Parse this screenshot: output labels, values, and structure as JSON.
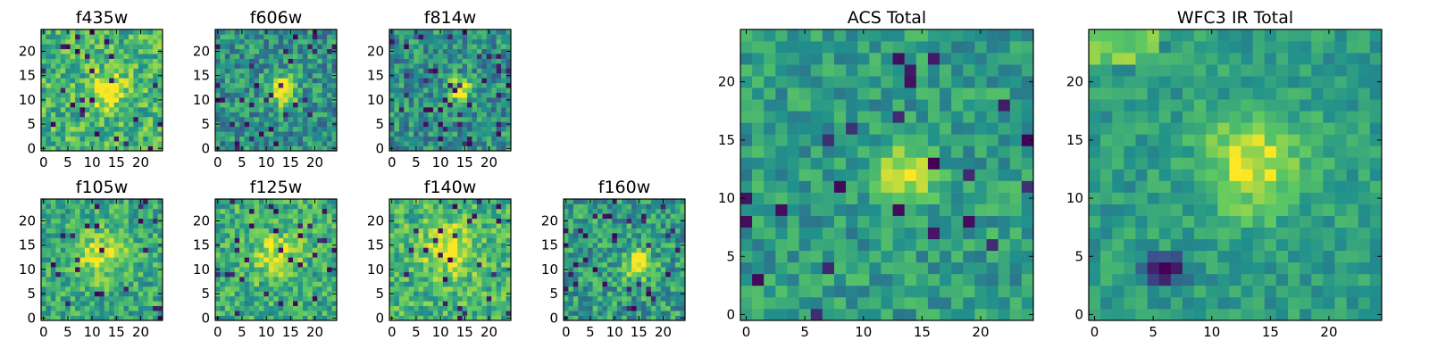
{
  "chart_data": [
    {
      "type": "heatmap",
      "title": "f435w",
      "grid_size": 25,
      "source_center": [
        13,
        12
      ],
      "source_strength": 0.45,
      "source_sigma": 2.5,
      "background": 0.66,
      "noise": 0.22,
      "seed": 11,
      "dark_pixel_rate": 0.03,
      "bright_edge": 0,
      "xticks": [
        0,
        5,
        10,
        15,
        20
      ],
      "yticks": [
        0,
        5,
        10,
        15,
        20
      ],
      "xtick_labels": [
        "0",
        "5",
        "10",
        "15",
        "20"
      ],
      "ytick_labels": [
        "0",
        "5",
        "10",
        "15",
        "20"
      ]
    },
    {
      "type": "heatmap",
      "title": "f606w",
      "grid_size": 25,
      "source_center": [
        13,
        12
      ],
      "source_strength": 0.55,
      "source_sigma": 2.2,
      "background": 0.5,
      "noise": 0.22,
      "seed": 23,
      "dark_pixel_rate": 0.05,
      "bright_edge": 0,
      "xticks": [
        0,
        5,
        10,
        15,
        20
      ],
      "yticks": [
        0,
        5,
        10,
        15,
        20
      ],
      "xtick_labels": [
        "0",
        "5",
        "10",
        "15",
        "20"
      ],
      "ytick_labels": [
        "0",
        "5",
        "10",
        "15",
        "20"
      ]
    },
    {
      "type": "heatmap",
      "title": "f814w",
      "grid_size": 25,
      "source_center": [
        14,
        12
      ],
      "source_strength": 0.6,
      "source_sigma": 1.6,
      "background": 0.5,
      "noise": 0.22,
      "seed": 37,
      "dark_pixel_rate": 0.06,
      "bright_edge": 0,
      "xticks": [
        0,
        5,
        10,
        15,
        20
      ],
      "yticks": [
        0,
        5,
        10,
        15,
        20
      ],
      "xtick_labels": [
        "0",
        "5",
        "10",
        "15",
        "20"
      ],
      "ytick_labels": [
        "0",
        "5",
        "10",
        "15",
        "20"
      ]
    },
    {
      "type": "heatmap",
      "title": "f105w",
      "grid_size": 25,
      "source_center": [
        12,
        13
      ],
      "source_strength": 0.35,
      "source_sigma": 3.5,
      "background": 0.6,
      "noise": 0.2,
      "seed": 41,
      "dark_pixel_rate": 0.03,
      "bright_edge": 0,
      "xticks": [
        0,
        5,
        10,
        15,
        20
      ],
      "yticks": [
        0,
        5,
        10,
        15,
        20
      ],
      "xtick_labels": [
        "0",
        "5",
        "10",
        "15",
        "20"
      ],
      "ytick_labels": [
        "0",
        "5",
        "10",
        "15",
        "20"
      ]
    },
    {
      "type": "heatmap",
      "title": "f125w",
      "grid_size": 25,
      "source_center": [
        12,
        13
      ],
      "source_strength": 0.3,
      "source_sigma": 3.5,
      "background": 0.62,
      "noise": 0.2,
      "seed": 53,
      "dark_pixel_rate": 0.04,
      "bright_edge": 0,
      "xticks": [
        0,
        5,
        10,
        15,
        20
      ],
      "yticks": [
        0,
        5,
        10,
        15,
        20
      ],
      "xtick_labels": [
        "0",
        "5",
        "10",
        "15",
        "20"
      ],
      "ytick_labels": [
        "0",
        "5",
        "10",
        "15",
        "20"
      ]
    },
    {
      "type": "heatmap",
      "title": "f140w",
      "grid_size": 25,
      "source_center": [
        12,
        14
      ],
      "source_strength": 0.3,
      "source_sigma": 4.0,
      "background": 0.65,
      "noise": 0.2,
      "seed": 67,
      "dark_pixel_rate": 0.04,
      "bright_edge": 0,
      "xticks": [
        0,
        5,
        10,
        15,
        20
      ],
      "yticks": [
        0,
        5,
        10,
        15,
        20
      ],
      "xtick_labels": [
        "0",
        "5",
        "10",
        "15",
        "20"
      ],
      "ytick_labels": [
        "0",
        "5",
        "10",
        "15",
        "20"
      ]
    },
    {
      "type": "heatmap",
      "title": "f160w",
      "grid_size": 25,
      "source_center": [
        15,
        11
      ],
      "source_strength": 0.5,
      "source_sigma": 2.0,
      "background": 0.55,
      "noise": 0.22,
      "seed": 79,
      "dark_pixel_rate": 0.06,
      "bright_edge": 0,
      "xticks": [
        0,
        5,
        10,
        15,
        20
      ],
      "yticks": [
        0,
        5,
        10,
        15,
        20
      ],
      "xtick_labels": [
        "0",
        "5",
        "10",
        "15",
        "20"
      ],
      "ytick_labels": [
        "0",
        "5",
        "10",
        "15",
        "20"
      ]
    },
    {
      "type": "heatmap",
      "title": "ACS Total",
      "grid_size": 25,
      "source_center": [
        13.5,
        12
      ],
      "source_strength": 0.45,
      "source_sigma": 1.8,
      "background": 0.55,
      "noise": 0.16,
      "seed": 97,
      "dark_pixel_rate": 0.04,
      "bright_edge": 0,
      "xticks": [
        0,
        5,
        10,
        15,
        20
      ],
      "yticks": [
        0,
        5,
        10,
        15,
        20
      ],
      "xtick_labels": [
        "0",
        "5",
        "10",
        "15",
        "20"
      ],
      "ytick_labels": [
        "0",
        "5",
        "10",
        "15",
        "20"
      ]
    },
    {
      "type": "heatmap",
      "title": "WFC3 IR Total",
      "grid_size": 25,
      "source_center": [
        13.5,
        13
      ],
      "source_strength": 0.4,
      "source_sigma": 3.0,
      "background": 0.55,
      "noise": 0.12,
      "seed": 113,
      "dark_pixel_rate": 0.0,
      "dark_blob": [
        6,
        4
      ],
      "bright_edge": 1,
      "xticks": [
        0,
        5,
        10,
        15,
        20
      ],
      "yticks": [
        0,
        5,
        10,
        15,
        20
      ],
      "xtick_labels": [
        "0",
        "5",
        "10",
        "15",
        "20"
      ],
      "ytick_labels": [
        "0",
        "5",
        "10",
        "15",
        "20"
      ]
    }
  ],
  "colormap": [
    "#440154",
    "#3b528b",
    "#21918c",
    "#5ec962",
    "#fde725"
  ]
}
